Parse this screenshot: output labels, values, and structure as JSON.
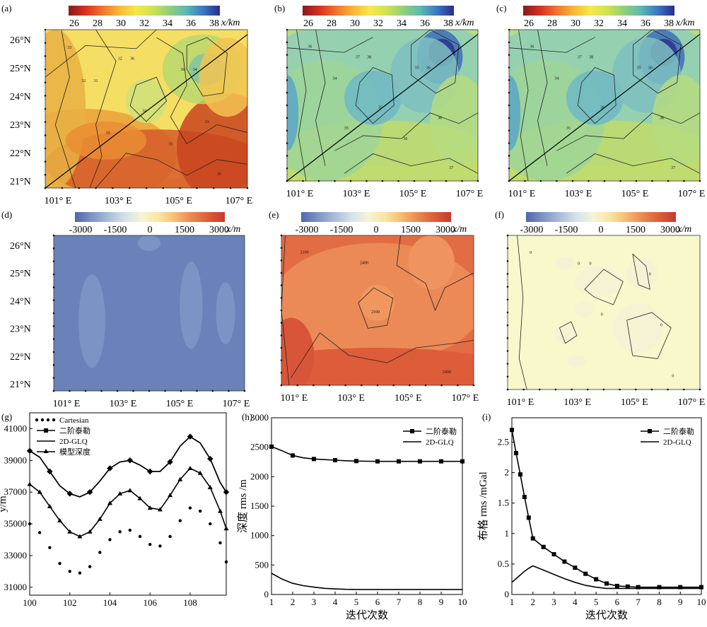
{
  "chart_data": [
    {
      "panel_label": "(a)",
      "type": "heatmap",
      "colorbar": {
        "ticks": [
          "26",
          "28",
          "30",
          "32",
          "34",
          "36",
          "38"
        ],
        "unit": "x/km",
        "range": [
          26,
          39
        ],
        "palette": "red-yellow-green-blue"
      },
      "y_ticks": [
        "26°N",
        "25°N",
        "24°N",
        "23°N",
        "22°N",
        "21°N"
      ],
      "x_ticks": [
        "101° E",
        "103° E",
        "105° E",
        "107° E"
      ],
      "contour_labels": [
        "33",
        "34",
        "35",
        "36",
        "33",
        "32",
        "34",
        "35",
        "30",
        "31",
        "33",
        "32"
      ],
      "profile_line": true
    },
    {
      "panel_label": "(b)",
      "type": "heatmap",
      "colorbar": {
        "ticks": [
          "26",
          "28",
          "30",
          "32",
          "34",
          "36",
          "38"
        ],
        "unit": "x/km",
        "range": [
          26,
          39
        ],
        "palette": "red-yellow-green-blue"
      },
      "x_ticks": [
        "101° E",
        "103° E",
        "105° E",
        "107° E"
      ],
      "contour_labels": [
        "36",
        "35",
        "37",
        "38",
        "36",
        "37",
        "36",
        "35",
        "35",
        "34",
        "36"
      ],
      "profile_line": true
    },
    {
      "panel_label": "(c)",
      "type": "heatmap",
      "colorbar": {
        "ticks": [
          "26",
          "28",
          "30",
          "32",
          "34",
          "36",
          "38"
        ],
        "unit": "x/km",
        "range": [
          26,
          39
        ],
        "palette": "red-yellow-green-blue"
      },
      "x_ticks": [
        "101° E",
        "103° E",
        "105° E",
        "107° E"
      ],
      "contour_labels": [
        "36",
        "36",
        "37",
        "38",
        "36",
        "37",
        "36",
        "35",
        "35",
        "34"
      ],
      "profile_line": true
    },
    {
      "panel_label": "(d)",
      "type": "heatmap",
      "colorbar": {
        "ticks": [
          "-3000",
          "-1500",
          "0",
          "1500",
          "3000"
        ],
        "unit": "x/m",
        "range": [
          -3500,
          3500
        ],
        "palette": "blue-white-red"
      },
      "y_ticks": [
        "26°N",
        "25°N",
        "24°N",
        "23°N",
        "22°N",
        "21°N"
      ],
      "x_ticks": [
        "101° E",
        "103° E",
        "105° E",
        "107° E"
      ],
      "contour_labels": []
    },
    {
      "panel_label": "(e)",
      "type": "heatmap",
      "colorbar": {
        "ticks": [
          "-3000",
          "-1500",
          "0",
          "1500",
          "3000"
        ],
        "unit": "x/m",
        "range": [
          -3500,
          3500
        ],
        "palette": "blue-white-red"
      },
      "x_ticks": [
        "101° E",
        "103° E",
        "105° E",
        "107° E"
      ],
      "contour_labels": [
        "2100",
        "2100",
        "2400",
        "2400"
      ]
    },
    {
      "panel_label": "(f)",
      "type": "heatmap",
      "colorbar": {
        "ticks": [
          "-3000",
          "-1500",
          "0",
          "1500",
          "3000"
        ],
        "unit": "x/m",
        "range": [
          -3500,
          3500
        ],
        "palette": "blue-white-red"
      },
      "x_ticks": [
        "101° E",
        "103° E",
        "105° E",
        "107° E"
      ],
      "contour_labels": [
        "0",
        "0",
        "0",
        "0",
        "0",
        "0",
        "0"
      ]
    },
    {
      "panel_label": "(g)",
      "type": "line",
      "ylabel": "y/m",
      "xlim": [
        100,
        109.8
      ],
      "ylim": [
        30500,
        42000
      ],
      "x_ticks": [
        100,
        102,
        104,
        106,
        108
      ],
      "y_ticks": [
        31000,
        33000,
        35000,
        37000,
        39000,
        41000
      ],
      "x": [
        100,
        100.5,
        101,
        101.5,
        102,
        102.5,
        103,
        103.5,
        104,
        104.5,
        105,
        105.5,
        106,
        106.5,
        107,
        107.5,
        108,
        108.5,
        109,
        109.5,
        109.8
      ],
      "series": [
        {
          "name": "Cartesian",
          "style": "dotted",
          "values": [
            35000,
            34450,
            33500,
            32500,
            32000,
            31900,
            32300,
            33200,
            34000,
            34500,
            34600,
            34200,
            33700,
            33600,
            34200,
            35200,
            36000,
            35800,
            35000,
            33800,
            32600
          ]
        },
        {
          "name": "二阶泰勒",
          "style": "line-square",
          "values": [
            39600,
            39200,
            38300,
            37400,
            36900,
            36700,
            37000,
            37700,
            38500,
            38900,
            39000,
            38700,
            38300,
            38300,
            38900,
            39900,
            40500,
            40100,
            39100,
            37600,
            37000
          ]
        },
        {
          "name": "2D-GLQ",
          "style": "line",
          "values": [
            39600,
            39200,
            38300,
            37400,
            36900,
            36700,
            37000,
            37700,
            38500,
            38900,
            39000,
            38700,
            38300,
            38300,
            38900,
            39900,
            40500,
            40100,
            39100,
            37600,
            37000
          ]
        },
        {
          "name": "模型深度",
          "style": "line-triangle",
          "values": [
            37500,
            37000,
            36100,
            35200,
            34500,
            34200,
            34500,
            35300,
            36300,
            36900,
            37100,
            36600,
            36000,
            35900,
            36800,
            37800,
            38500,
            38200,
            37300,
            35800,
            34700
          ]
        }
      ]
    },
    {
      "panel_label": "(h)",
      "type": "line",
      "xlabel": "迭代次数",
      "ylabel": "深度 rms /m",
      "xlim": [
        1,
        10
      ],
      "ylim": [
        0,
        3000
      ],
      "x_ticks": [
        1,
        2,
        3,
        4,
        5,
        6,
        7,
        8,
        9,
        10
      ],
      "y_ticks": [
        0,
        500,
        1000,
        1500,
        2000,
        2500,
        3000
      ],
      "x": [
        1,
        1.5,
        2,
        2.5,
        3,
        3.5,
        4,
        4.5,
        5,
        5.5,
        6,
        6.5,
        7,
        7.5,
        8,
        8.5,
        9,
        9.5,
        10
      ],
      "series": [
        {
          "name": "二阶泰勒",
          "style": "line-square",
          "values": [
            2510,
            2440,
            2360,
            2320,
            2300,
            2290,
            2280,
            2270,
            2265,
            2262,
            2260,
            2260,
            2260,
            2260,
            2260,
            2260,
            2260,
            2260,
            2260
          ]
        },
        {
          "name": "2D-GLQ",
          "style": "line",
          "values": [
            360,
            260,
            190,
            150,
            125,
            105,
            95,
            88,
            85,
            85,
            85,
            85,
            85,
            85,
            85,
            85,
            85,
            85,
            85
          ]
        }
      ]
    },
    {
      "panel_label": "(i)",
      "type": "line",
      "xlabel": "迭代次数",
      "ylabel": "布格 rms /mGal",
      "xlim": [
        1,
        10
      ],
      "ylim": [
        0,
        2.9
      ],
      "x_ticks": [
        1,
        2,
        3,
        4,
        5,
        6,
        7,
        8,
        9,
        10
      ],
      "y_ticks": [
        0,
        0.5,
        1,
        1.5,
        2,
        2.5
      ],
      "x": [
        1,
        1.2,
        1.4,
        1.6,
        1.8,
        2,
        2.5,
        3,
        3.5,
        4,
        4.5,
        5,
        5.5,
        6,
        6.5,
        7,
        8,
        9,
        10
      ],
      "series": [
        {
          "name": "二阶泰勒",
          "style": "line-square",
          "values": [
            2.7,
            2.32,
            1.97,
            1.6,
            1.26,
            0.92,
            0.78,
            0.66,
            0.54,
            0.44,
            0.34,
            0.25,
            0.18,
            0.14,
            0.13,
            0.12,
            0.12,
            0.12,
            0.12
          ]
        },
        {
          "name": "2D-GLQ",
          "style": "line",
          "values": [
            0.2,
            0.26,
            0.32,
            0.38,
            0.43,
            0.47,
            0.4,
            0.33,
            0.26,
            0.2,
            0.15,
            0.12,
            0.1,
            0.1,
            0.1,
            0.1,
            0.1,
            0.1,
            0.1
          ]
        }
      ]
    }
  ]
}
